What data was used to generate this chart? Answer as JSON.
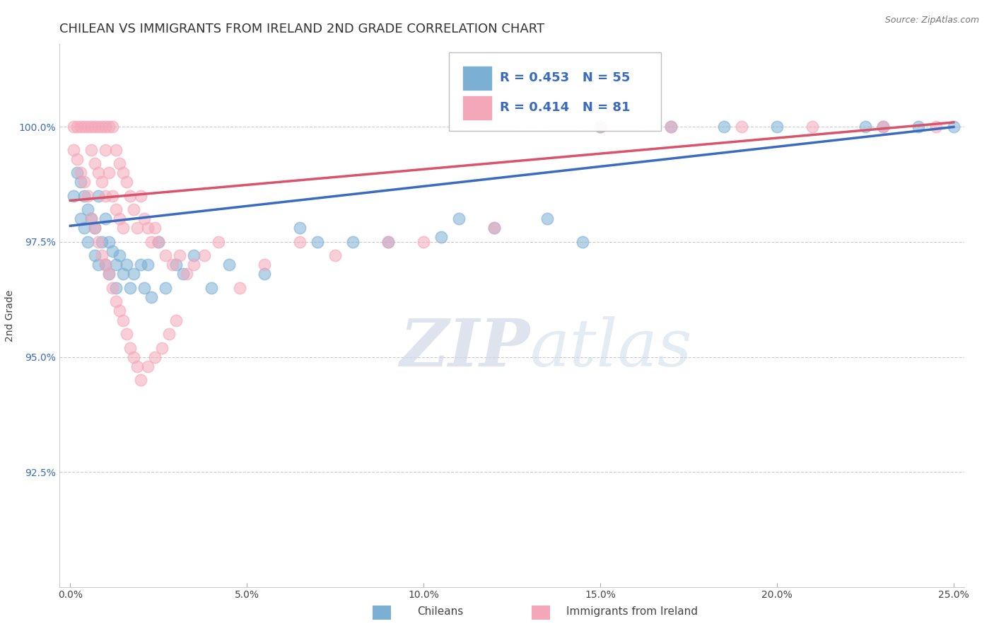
{
  "title": "CHILEAN VS IMMIGRANTS FROM IRELAND 2ND GRADE CORRELATION CHART",
  "source": "Source: ZipAtlas.com",
  "xlabel_label": "Chileans",
  "xlabel2_label": "Immigrants from Ireland",
  "ylabel": "2nd Grade",
  "xlim": [
    -0.3,
    25.3
  ],
  "ylim": [
    90.0,
    101.8
  ],
  "xticks": [
    0.0,
    5.0,
    10.0,
    15.0,
    20.0,
    25.0
  ],
  "yticks": [
    92.5,
    95.0,
    97.5,
    100.0
  ],
  "ytick_labels": [
    "92.5%",
    "95.0%",
    "97.5%",
    "100.0%"
  ],
  "xtick_labels": [
    "0.0%",
    "5.0%",
    "10.0%",
    "15.0%",
    "20.0%",
    "25.0%"
  ],
  "blue_color": "#7bafd4",
  "pink_color": "#f4a7b9",
  "blue_line_color": "#3a6bbf",
  "pink_line_color": "#d9536a",
  "legend_text_color": "#3a6bbf",
  "legend_R_blue": "R = 0.453",
  "legend_N_blue": "N = 55",
  "legend_R_pink": "R = 0.414",
  "legend_N_pink": "N = 81",
  "blue_x": [
    0.1,
    0.2,
    0.3,
    0.3,
    0.4,
    0.4,
    0.5,
    0.5,
    0.6,
    0.7,
    0.7,
    0.8,
    0.8,
    0.9,
    1.0,
    1.0,
    1.1,
    1.1,
    1.2,
    1.3,
    1.3,
    1.4,
    1.5,
    1.6,
    1.7,
    1.8,
    2.0,
    2.1,
    2.2,
    2.3,
    2.5,
    2.7,
    3.0,
    3.2,
    3.5,
    4.0,
    4.5,
    5.5,
    7.0,
    9.0,
    10.5,
    12.0,
    13.5,
    15.0,
    17.0,
    20.0,
    22.5,
    25.0,
    18.5,
    24.0,
    8.0,
    6.5,
    11.0,
    14.5,
    23.0
  ],
  "blue_y": [
    98.5,
    99.0,
    98.8,
    98.0,
    98.5,
    97.8,
    98.2,
    97.5,
    98.0,
    97.8,
    97.2,
    98.5,
    97.0,
    97.5,
    98.0,
    97.0,
    97.5,
    96.8,
    97.3,
    97.0,
    96.5,
    97.2,
    96.8,
    97.0,
    96.5,
    96.8,
    97.0,
    96.5,
    97.0,
    96.3,
    97.5,
    96.5,
    97.0,
    96.8,
    97.2,
    96.5,
    97.0,
    96.8,
    97.5,
    97.5,
    97.6,
    97.8,
    98.0,
    100.0,
    100.0,
    100.0,
    100.0,
    100.0,
    100.0,
    100.0,
    97.5,
    97.8,
    98.0,
    97.5,
    100.0
  ],
  "pink_x": [
    0.1,
    0.1,
    0.2,
    0.2,
    0.3,
    0.3,
    0.4,
    0.4,
    0.5,
    0.5,
    0.6,
    0.6,
    0.7,
    0.7,
    0.8,
    0.8,
    0.9,
    0.9,
    1.0,
    1.0,
    1.0,
    1.1,
    1.1,
    1.2,
    1.2,
    1.3,
    1.3,
    1.4,
    1.4,
    1.5,
    1.5,
    1.6,
    1.7,
    1.8,
    1.9,
    2.0,
    2.1,
    2.2,
    2.3,
    2.4,
    2.5,
    2.7,
    2.9,
    3.1,
    3.3,
    3.5,
    3.8,
    4.2,
    4.8,
    5.5,
    6.5,
    7.5,
    9.0,
    10.0,
    12.0,
    15.0,
    17.0,
    19.0,
    21.0,
    23.0,
    24.5,
    0.6,
    0.7,
    0.8,
    0.9,
    1.0,
    1.1,
    1.2,
    1.3,
    1.4,
    1.5,
    1.6,
    1.7,
    1.8,
    1.9,
    2.0,
    2.2,
    2.4,
    2.6,
    2.8,
    3.0
  ],
  "pink_y": [
    100.0,
    99.5,
    100.0,
    99.3,
    100.0,
    99.0,
    100.0,
    98.8,
    100.0,
    98.5,
    100.0,
    99.5,
    100.0,
    99.2,
    100.0,
    99.0,
    100.0,
    98.8,
    100.0,
    99.5,
    98.5,
    100.0,
    99.0,
    100.0,
    98.5,
    99.5,
    98.2,
    99.2,
    98.0,
    99.0,
    97.8,
    98.8,
    98.5,
    98.2,
    97.8,
    98.5,
    98.0,
    97.8,
    97.5,
    97.8,
    97.5,
    97.2,
    97.0,
    97.2,
    96.8,
    97.0,
    97.2,
    97.5,
    96.5,
    97.0,
    97.5,
    97.2,
    97.5,
    97.5,
    97.8,
    100.0,
    100.0,
    100.0,
    100.0,
    100.0,
    100.0,
    98.0,
    97.8,
    97.5,
    97.2,
    97.0,
    96.8,
    96.5,
    96.2,
    96.0,
    95.8,
    95.5,
    95.2,
    95.0,
    94.8,
    94.5,
    94.8,
    95.0,
    95.2,
    95.5,
    95.8
  ],
  "blue_trend_x0": 0.0,
  "blue_trend_y0": 97.85,
  "blue_trend_x1": 25.0,
  "blue_trend_y1": 100.0,
  "pink_trend_x0": 0.0,
  "pink_trend_y0": 98.4,
  "pink_trend_x1": 25.0,
  "pink_trend_y1": 100.1,
  "watermark_ZIP": "ZIP",
  "watermark_atlas": "atlas",
  "title_fontsize": 13,
  "axis_fontsize": 10,
  "tick_fontsize": 10,
  "legend_fontsize": 13
}
